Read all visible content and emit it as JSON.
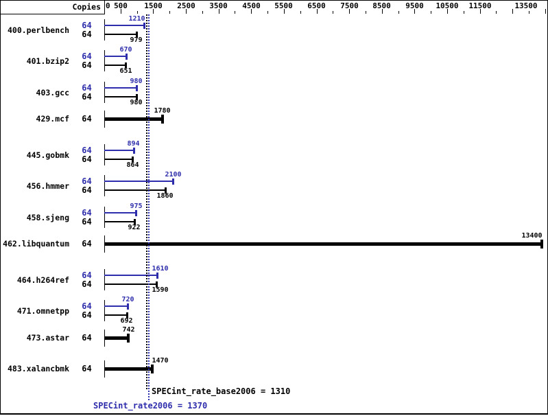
{
  "chart_data": {
    "type": "bar",
    "orientation": "horizontal",
    "copies_header": "Copies",
    "x_axis": {
      "range": [
        0,
        13580
      ],
      "tick_labels": [
        "0",
        "500",
        "1500",
        "2500",
        "3500",
        "4500",
        "5500",
        "6500",
        "7500",
        "8500",
        "9500",
        "10500",
        "11500",
        "13500"
      ],
      "label_values": [
        0,
        500,
        1500,
        2500,
        3500,
        4500,
        5500,
        6500,
        7500,
        8500,
        9500,
        10500,
        11500,
        13500
      ],
      "major_ticks": [
        500,
        1500,
        2500,
        3500,
        4500,
        5500,
        6500,
        7500,
        8500,
        9500,
        10500,
        11500,
        12500,
        13500
      ],
      "minor_ticks": [
        1000,
        2000,
        3000,
        4000,
        5000,
        6000,
        7000,
        8000,
        9000,
        10000,
        11000,
        12000,
        13000
      ]
    },
    "benchmarks": [
      {
        "name": "400.perlbench",
        "copies": 64,
        "peak": 1210,
        "base": 979
      },
      {
        "name": "401.bzip2",
        "copies": 64,
        "peak": 670,
        "base": 651
      },
      {
        "name": "403.gcc",
        "copies": 64,
        "peak": 980,
        "base": 980
      },
      {
        "name": "429.mcf",
        "copies": 64,
        "peak": null,
        "base": 1780
      },
      {
        "name": "445.gobmk",
        "copies": 64,
        "peak": 894,
        "base": 864
      },
      {
        "name": "456.hmmer",
        "copies": 64,
        "peak": 2100,
        "base": 1860
      },
      {
        "name": "458.sjeng",
        "copies": 64,
        "peak": 975,
        "base": 922
      },
      {
        "name": "462.libquantum",
        "copies": 64,
        "peak": null,
        "base": 13400
      },
      {
        "name": "464.h264ref",
        "copies": 64,
        "peak": 1610,
        "base": 1590
      },
      {
        "name": "471.omnetpp",
        "copies": 64,
        "peak": 720,
        "base": 692
      },
      {
        "name": "473.astar",
        "copies": 64,
        "peak": null,
        "base": 742
      },
      {
        "name": "483.xalancbmk",
        "copies": 64,
        "peak": null,
        "base": 1470
      }
    ],
    "summary": {
      "base_text": "SPECint_rate_base2006 = 1310",
      "peak_text": "SPECint_rate2006 = 1370",
      "base_value": 1310,
      "peak_value": 1370
    },
    "colors": {
      "peak_blue": "#2e2eac",
      "base_black": "#000000"
    }
  }
}
